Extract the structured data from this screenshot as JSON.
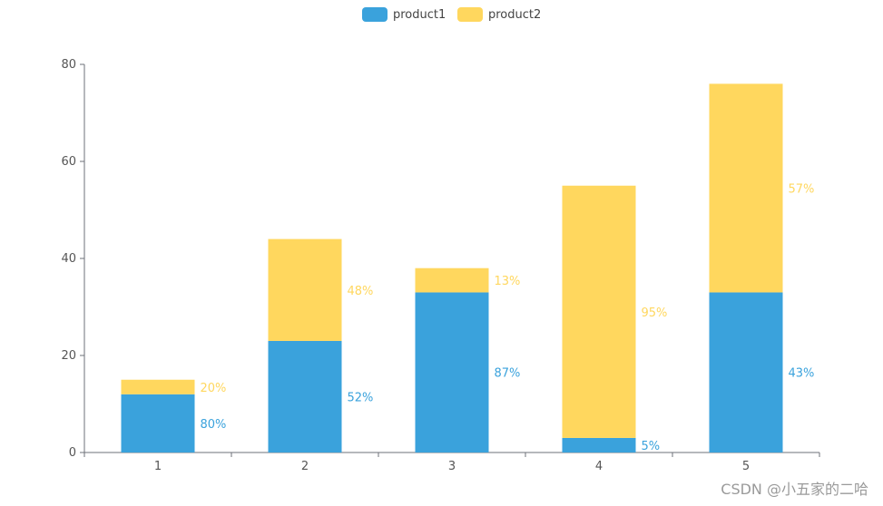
{
  "chart_data": {
    "type": "bar",
    "stacked": true,
    "categories": [
      "1",
      "2",
      "3",
      "4",
      "5"
    ],
    "series": [
      {
        "name": "product1",
        "color": "#3aa2dc",
        "values": [
          12,
          23,
          33,
          3,
          33
        ],
        "labels": [
          "80%",
          "52%",
          "87%",
          "5%",
          "43%"
        ]
      },
      {
        "name": "product2",
        "color": "#ffd75e",
        "values": [
          3,
          21,
          5,
          52,
          43
        ],
        "labels": [
          "20%",
          "48%",
          "13%",
          "95%",
          "57%"
        ]
      }
    ],
    "ylim": [
      0,
      80
    ],
    "yticks": [
      "0",
      "20",
      "40",
      "60",
      "80"
    ],
    "legend": "top-center",
    "grid": false
  },
  "watermark": "CSDN @小五家的二哈"
}
